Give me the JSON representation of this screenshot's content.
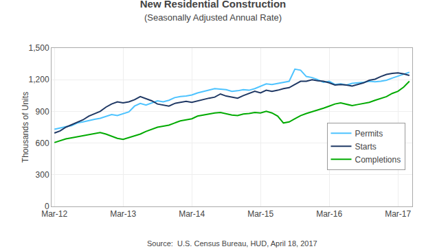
{
  "chart_data": {
    "type": "line",
    "title": "New Residential Construction",
    "subtitle": "(Seasonally Adjusted Annual Rate)",
    "ylabel": "Thousands of Units",
    "source": "Source:  U.S. Census Bureau, HUD, April 18, 2017",
    "categories": [
      "Mar-12",
      null,
      null,
      null,
      null,
      null,
      null,
      null,
      null,
      null,
      null,
      null,
      "Mar-13",
      null,
      null,
      null,
      null,
      null,
      null,
      null,
      null,
      null,
      null,
      null,
      "Mar-14",
      null,
      null,
      null,
      null,
      null,
      null,
      null,
      null,
      null,
      null,
      null,
      "Mar-15",
      null,
      null,
      null,
      null,
      null,
      null,
      null,
      null,
      null,
      null,
      null,
      "Mar-16",
      null,
      null,
      null,
      null,
      null,
      null,
      null,
      null,
      null,
      null,
      null,
      "Mar-17",
      null,
      null
    ],
    "ylim": [
      0,
      1500
    ],
    "yticks": [
      0,
      300,
      600,
      900,
      {
        "value": 1200,
        "label": "1,200"
      },
      {
        "value": 1500,
        "label": "1,500"
      }
    ],
    "grid": true,
    "legend": "right",
    "series": [
      {
        "name": "Permits",
        "color": "#4DC3FF",
        "values": [
          730,
          745,
          755,
          765,
          790,
          800,
          815,
          825,
          835,
          855,
          870,
          860,
          880,
          895,
          950,
          975,
          960,
          980,
          1000,
          990,
          1005,
          1030,
          1040,
          1045,
          1055,
          1075,
          1090,
          1100,
          1115,
          1110,
          1105,
          1090,
          1095,
          1105,
          1100,
          1115,
          1140,
          1160,
          1155,
          1165,
          1175,
          1185,
          1300,
          1290,
          1230,
          1220,
          1200,
          1175,
          1185,
          1155,
          1160,
          1150,
          1165,
          1170,
          1175,
          1185,
          1180,
          1185,
          1195,
          1215,
          1235,
          1255,
          1270
        ]
      },
      {
        "name": "Starts",
        "color": "#1F3864",
        "values": [
          695,
          715,
          750,
          775,
          800,
          820,
          855,
          880,
          900,
          940,
          970,
          990,
          980,
          990,
          1010,
          1040,
          1020,
          1000,
          970,
          960,
          950,
          975,
          985,
          995,
          985,
          1000,
          1015,
          1025,
          1035,
          1065,
          1045,
          1035,
          1025,
          1050,
          1070,
          1090,
          1075,
          1100,
          1090,
          1100,
          1115,
          1125,
          1155,
          1185,
          1185,
          1200,
          1190,
          1185,
          1170,
          1150,
          1155,
          1150,
          1140,
          1155,
          1170,
          1195,
          1205,
          1230,
          1250,
          1260,
          1265,
          1255,
          1240
        ]
      },
      {
        "name": "Completions",
        "color": "#00AA00",
        "values": [
          605,
          625,
          640,
          650,
          660,
          670,
          680,
          690,
          700,
          685,
          665,
          645,
          635,
          650,
          665,
          685,
          710,
          730,
          750,
          760,
          770,
          790,
          810,
          820,
          830,
          855,
          865,
          875,
          885,
          890,
          875,
          865,
          860,
          875,
          880,
          890,
          885,
          900,
          885,
          855,
          790,
          800,
          830,
          860,
          880,
          895,
          915,
          930,
          950,
          970,
          980,
          965,
          955,
          965,
          975,
          985,
          1005,
          1025,
          1040,
          1070,
          1090,
          1130,
          1185
        ]
      }
    ]
  }
}
